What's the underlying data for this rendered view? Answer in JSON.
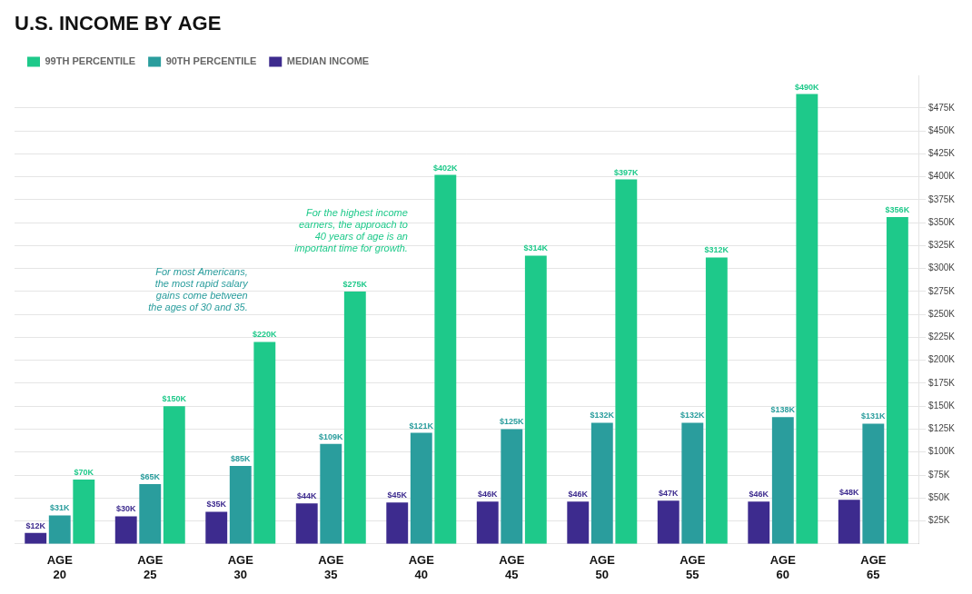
{
  "chart_data": {
    "type": "bar",
    "title": "U.S. INCOME BY AGE",
    "categories": [
      "AGE\n20",
      "AGE\n25",
      "AGE\n30",
      "AGE\n35",
      "AGE\n40",
      "AGE\n45",
      "AGE\n50",
      "AGE\n55",
      "AGE\n60",
      "AGE\n65"
    ],
    "series": [
      {
        "name": "MEDIAN INCOME",
        "color": "#3d2b8e",
        "values": [
          12,
          30,
          35,
          44,
          45,
          46,
          46,
          47,
          46,
          48
        ],
        "value_labels": [
          "$12K",
          "$30K",
          "$35K",
          "$44K",
          "$45K",
          "$46K",
          "$46K",
          "$47K",
          "$46K",
          "$48K"
        ]
      },
      {
        "name": "90TH PERCENTILE",
        "color": "#2a9d9d",
        "values": [
          31,
          65,
          85,
          109,
          121,
          125,
          132,
          132,
          138,
          131
        ],
        "value_labels": [
          "$31K",
          "$65K",
          "$85K",
          "$109K",
          "$121K",
          "$125K",
          "$132K",
          "$132K",
          "$138K",
          "$131K"
        ]
      },
      {
        "name": "99TH PERCENTILE",
        "color": "#1ec98a",
        "values": [
          70,
          150,
          220,
          275,
          402,
          314,
          397,
          312,
          490,
          356
        ],
        "value_labels": [
          "$70K",
          "$150K",
          "$220K",
          "$275K",
          "$402K",
          "$314K",
          "$397K",
          "$312K",
          "$490K",
          "$356K"
        ]
      }
    ],
    "ylim": [
      0,
      510
    ],
    "yticks": [
      {
        "value": 25,
        "label": "$25K"
      },
      {
        "value": 50,
        "label": "$50K"
      },
      {
        "value": 75,
        "label": "$75K"
      },
      {
        "value": 100,
        "label": "$100K"
      },
      {
        "value": 125,
        "label": "$125K"
      },
      {
        "value": 150,
        "label": "$150K"
      },
      {
        "value": 175,
        "label": "$175K"
      },
      {
        "value": 200,
        "label": "$200K"
      },
      {
        "value": 225,
        "label": "$225K"
      },
      {
        "value": 250,
        "label": "$250K"
      },
      {
        "value": 275,
        "label": "$275K"
      },
      {
        "value": 300,
        "label": "$300K"
      },
      {
        "value": 325,
        "label": "$325K"
      },
      {
        "value": 350,
        "label": "$350K"
      },
      {
        "value": 375,
        "label": "$375K"
      },
      {
        "value": 400,
        "label": "$400K"
      },
      {
        "value": 425,
        "label": "$425K"
      },
      {
        "value": 450,
        "label": "$450K"
      },
      {
        "value": 475,
        "label": "$475K"
      }
    ],
    "grid": true,
    "data_labels": true,
    "legend": "upper left",
    "annotations": [
      {
        "text": "For most Americans,\nthe most rapid salary\ngains come between\nthe ages of 30 and 35.",
        "color": "#2a9d9d"
      },
      {
        "text": "For the highest income\nearners, the approach to\n40 years of age is an\nimportant time for growth.",
        "color": "#1ec98a"
      }
    ]
  }
}
